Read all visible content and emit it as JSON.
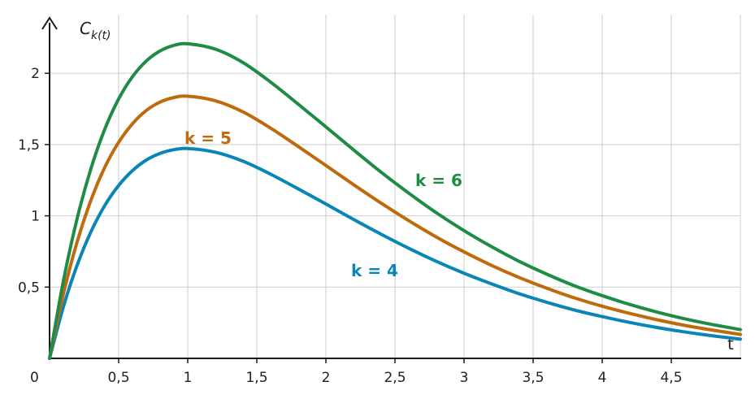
{
  "chart_data": {
    "type": "line",
    "title": "",
    "xlabel": "t",
    "ylabel": "C",
    "ylabel_subscript": "k(t)",
    "xlim": [
      0,
      5
    ],
    "ylim": [
      0,
      2.4
    ],
    "origin_label": "0",
    "x_ticks": [
      {
        "value": 0.5,
        "label": "0,5"
      },
      {
        "value": 1,
        "label": "1"
      },
      {
        "value": 1.5,
        "label": "1,5"
      },
      {
        "value": 2,
        "label": "2"
      },
      {
        "value": 2.5,
        "label": "2,5"
      },
      {
        "value": 3,
        "label": "3"
      },
      {
        "value": 3.5,
        "label": "3,5"
      },
      {
        "value": 4,
        "label": "4"
      },
      {
        "value": 4.5,
        "label": "4,5"
      }
    ],
    "y_ticks": [
      {
        "value": 0.5,
        "label": "0,5"
      },
      {
        "value": 1,
        "label": "1"
      },
      {
        "value": 1.5,
        "label": "1,5"
      },
      {
        "value": 2,
        "label": "2"
      }
    ],
    "grid": true,
    "x": [
      0,
      0.1,
      0.2,
      0.3,
      0.4,
      0.5,
      0.6,
      0.7,
      0.8,
      0.9,
      1.0,
      1.2,
      1.4,
      1.6,
      1.8,
      2.0,
      2.2,
      2.4,
      2.6,
      2.8,
      3.0,
      3.2,
      3.4,
      3.6,
      3.8,
      4.0,
      4.2,
      4.4,
      4.6,
      4.8,
      5.0
    ],
    "series": [
      {
        "name": "k = 4",
        "color": "#0a85b8",
        "values": [
          0,
          0.362,
          0.655,
          0.889,
          1.073,
          1.213,
          1.317,
          1.391,
          1.438,
          1.464,
          1.472,
          1.446,
          1.383,
          1.292,
          1.189,
          1.083,
          0.975,
          0.871,
          0.772,
          0.68,
          0.597,
          0.522,
          0.453,
          0.393,
          0.339,
          0.293,
          0.252,
          0.216,
          0.185,
          0.158,
          0.135
        ]
      },
      {
        "name": "k = 5",
        "color": "#bf6a0c",
        "values": [
          0,
          0.452,
          0.819,
          1.111,
          1.341,
          1.516,
          1.646,
          1.739,
          1.798,
          1.83,
          1.839,
          1.807,
          1.729,
          1.615,
          1.486,
          1.353,
          1.219,
          1.089,
          0.966,
          0.851,
          0.747,
          0.652,
          0.567,
          0.492,
          0.424,
          0.366,
          0.315,
          0.27,
          0.231,
          0.198,
          0.168
        ]
      },
      {
        "name": "k = 6",
        "color": "#1e8c45",
        "values": [
          0,
          0.543,
          0.983,
          1.333,
          1.609,
          1.82,
          1.976,
          2.086,
          2.157,
          2.196,
          2.207,
          2.169,
          2.075,
          1.938,
          1.783,
          1.624,
          1.463,
          1.306,
          1.159,
          1.021,
          0.896,
          0.783,
          0.68,
          0.59,
          0.509,
          0.44,
          0.378,
          0.324,
          0.277,
          0.237,
          0.202
        ]
      }
    ]
  }
}
